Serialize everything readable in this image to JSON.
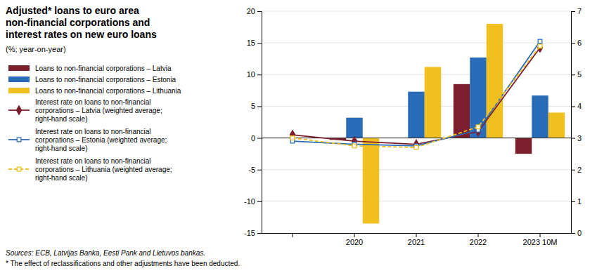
{
  "chart_data": {
    "type": "bar",
    "title": "Adjusted* loans to euro area\nnon-financial corporations and\ninterest rates on new euro loans",
    "subtitle": "(%; year-on-year)",
    "annotations": [
      "Sources: ECB, Latvijas Banka, Eesti Pank and Lietuvos bankas.",
      "* The effect of reclassifications and other adjustments have been deducted."
    ],
    "categories": [
      null,
      "2020",
      "2021",
      "2022",
      "2023 10M"
    ],
    "series": [
      {
        "name": "Loans to non-financial corporations – Latvia",
        "type": "bar",
        "color": "#7b1f2e",
        "values": [
          null,
          -0.3,
          0.0,
          8.5,
          -2.5
        ]
      },
      {
        "name": "Loans to non-financial corporations – Estonia",
        "type": "bar",
        "color": "#2b6cb8",
        "values": [
          null,
          3.2,
          7.3,
          12.7,
          6.7
        ]
      },
      {
        "name": "Loans to non-financial corporations – Lithuania",
        "type": "bar",
        "color": "#f0c020",
        "values": [
          null,
          -13.5,
          11.2,
          18.0,
          4.0
        ]
      },
      {
        "name": "Interest rate on loans to non-financial\ncorporations – Latvia (weighted average;\nright-hand scale)",
        "type": "line",
        "axis": "y2",
        "color": "#7b1f2e",
        "marker": "diamond",
        "line_style": "solid",
        "values": [
          3.1,
          2.9,
          2.8,
          3.2,
          5.85
        ]
      },
      {
        "name": "Interest rate on loans to non-financial\ncorporations – Estonia (weighted average;\nright-hand scale)",
        "type": "line",
        "axis": "y2",
        "color": "#2b6cb8",
        "marker": "square-open",
        "line_style": "solid",
        "values": [
          2.9,
          2.8,
          2.75,
          3.25,
          6.05
        ]
      },
      {
        "name": "Interest rate on loans to non-financial\ncorporations – Lithuania (weighted average;\nright-hand scale)",
        "type": "line",
        "axis": "y2",
        "color": "#f0c020",
        "marker": "square-open",
        "line_style": "dashed",
        "values": [
          3.0,
          2.75,
          2.7,
          3.35,
          5.9
        ]
      }
    ],
    "ylim": [
      -15,
      20
    ],
    "yticks": [
      -15,
      -10,
      -5,
      0,
      5,
      10,
      15,
      20
    ],
    "y2lim": [
      0,
      7
    ],
    "y2ticks": [
      0,
      1,
      2,
      3,
      4,
      5,
      6,
      7
    ],
    "grid": true,
    "legend": "left"
  }
}
